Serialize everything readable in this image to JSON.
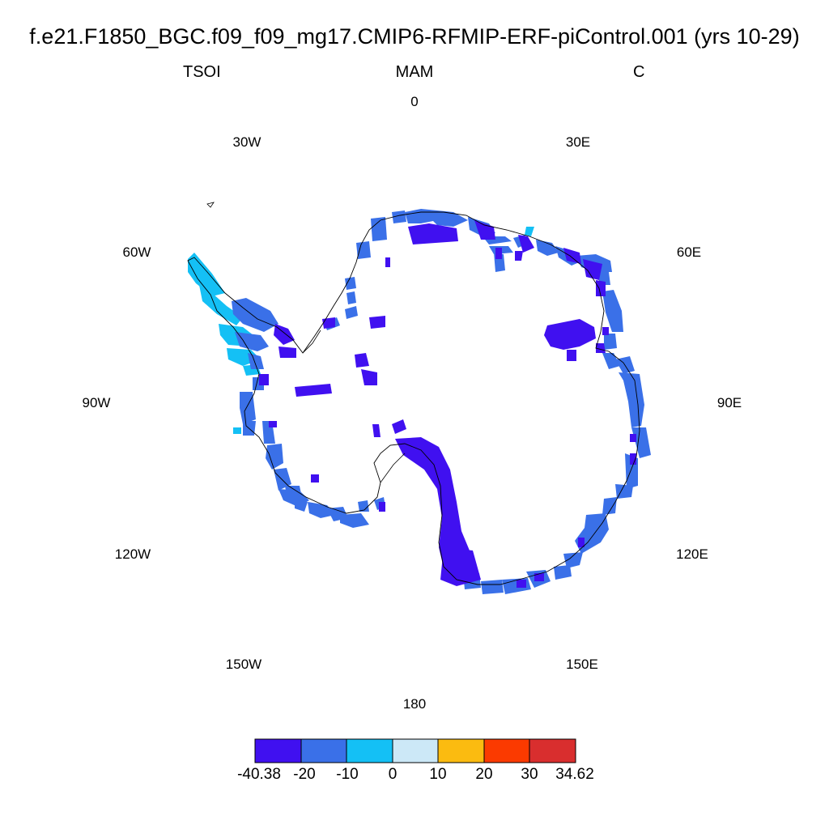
{
  "title": "f.e21.F1850_BGC.f09_f09_mg17.CMIP6-RFMIP-ERF-piControl.001 (yrs 10-29)",
  "left_label": "TSOI",
  "center_label": "MAM",
  "right_label": "C",
  "longitude_labels": [
    "0",
    "30E",
    "60E",
    "90E",
    "120E",
    "150E",
    "180",
    "150W",
    "120W",
    "90W",
    "60W",
    "30W"
  ],
  "colorbar": {
    "colors": [
      "#4010f0",
      "#3a70e8",
      "#14c0f5",
      "#cce8f7",
      "#fbbb10",
      "#fb3a00",
      "#d92e2e"
    ],
    "labels": [
      "-40.38",
      "-20",
      "-10",
      "0",
      "10",
      "20",
      "30",
      "34.62"
    ]
  },
  "colors": {
    "very_cold": "#4010f0",
    "cold": "#3a70e8",
    "cool": "#14c0f5",
    "coast": "#000000"
  }
}
